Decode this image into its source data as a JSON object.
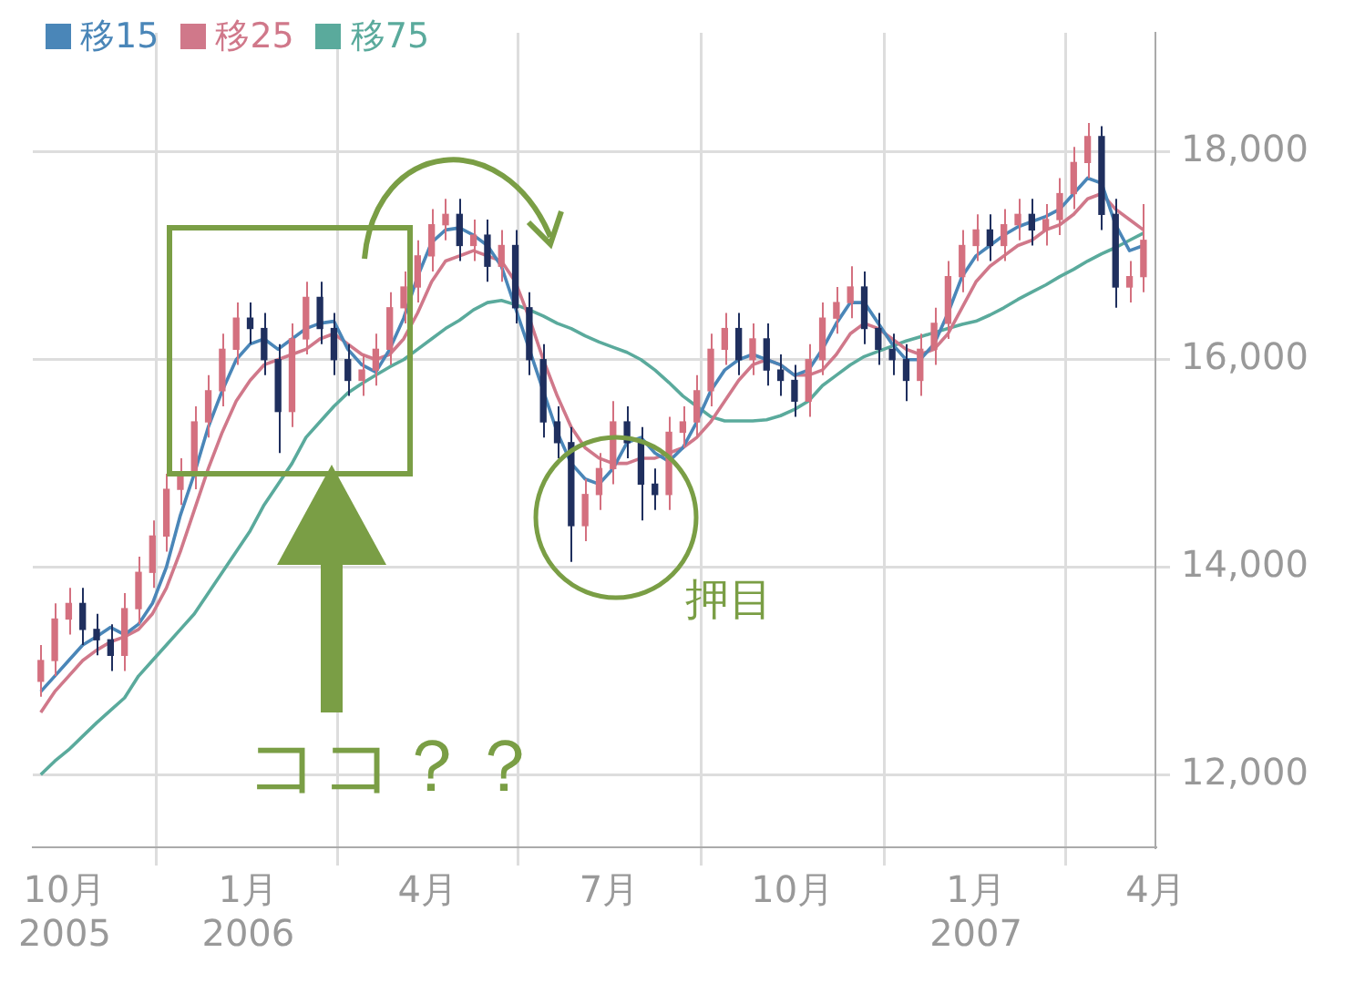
{
  "chart_data": {
    "type": "candlestick",
    "x": [
      "2005-09-19",
      "2005-09-26",
      "2005-10-03",
      "2005-10-10",
      "2005-10-17",
      "2005-10-24",
      "2005-10-31",
      "2005-11-07",
      "2005-11-14",
      "2005-11-21",
      "2005-11-28",
      "2005-12-05",
      "2005-12-12",
      "2005-12-19",
      "2005-12-26",
      "2006-01-02",
      "2006-01-09",
      "2006-01-16",
      "2006-01-23",
      "2006-01-30",
      "2006-02-06",
      "2006-02-13",
      "2006-02-20",
      "2006-02-27",
      "2006-03-06",
      "2006-03-13",
      "2006-03-20",
      "2006-03-27",
      "2006-04-03",
      "2006-04-10",
      "2006-04-17",
      "2006-04-24",
      "2006-05-01",
      "2006-05-08",
      "2006-05-15",
      "2006-05-22",
      "2006-05-29",
      "2006-06-05",
      "2006-06-12",
      "2006-06-19",
      "2006-06-26",
      "2006-07-03",
      "2006-07-10",
      "2006-07-17",
      "2006-07-24",
      "2006-07-31",
      "2006-08-07",
      "2006-08-14",
      "2006-08-21",
      "2006-08-28",
      "2006-09-04",
      "2006-09-11",
      "2006-09-18",
      "2006-09-25",
      "2006-10-02",
      "2006-10-09",
      "2006-10-16",
      "2006-10-23",
      "2006-10-30",
      "2006-11-06",
      "2006-11-13",
      "2006-11-20",
      "2006-11-27",
      "2006-12-04",
      "2006-12-11",
      "2006-12-18",
      "2006-12-25",
      "2007-01-01",
      "2007-01-08",
      "2007-01-15",
      "2007-01-22",
      "2007-01-29",
      "2007-02-05",
      "2007-02-12",
      "2007-02-19",
      "2007-02-26",
      "2007-03-05",
      "2007-03-12",
      "2007-03-19",
      "2007-03-26"
    ],
    "ohlc": [
      [
        12900,
        13250,
        12750,
        13100
      ],
      [
        13100,
        13650,
        12950,
        13500
      ],
      [
        13500,
        13800,
        13350,
        13650
      ],
      [
        13650,
        13800,
        13250,
        13400
      ],
      [
        13400,
        13550,
        13150,
        13300
      ],
      [
        13300,
        13450,
        13000,
        13150
      ],
      [
        13150,
        13750,
        13000,
        13600
      ],
      [
        13600,
        14100,
        13450,
        13950
      ],
      [
        13950,
        14450,
        13800,
        14300
      ],
      [
        14300,
        14900,
        14150,
        14750
      ],
      [
        14750,
        15050,
        14600,
        14900
      ],
      [
        14900,
        15550,
        14750,
        15400
      ],
      [
        15400,
        15850,
        15250,
        15700
      ],
      [
        15700,
        16250,
        15550,
        16100
      ],
      [
        16100,
        16550,
        15950,
        16400
      ],
      [
        16400,
        16550,
        16150,
        16300
      ],
      [
        16300,
        16450,
        15850,
        16000
      ],
      [
        16000,
        16150,
        15100,
        15500
      ],
      [
        15500,
        16350,
        15350,
        16200
      ],
      [
        16200,
        16750,
        16050,
        16600
      ],
      [
        16600,
        16750,
        16150,
        16300
      ],
      [
        16300,
        16450,
        15850,
        16000
      ],
      [
        16000,
        16150,
        15650,
        15800
      ],
      [
        15800,
        16050,
        15650,
        15900
      ],
      [
        15900,
        16250,
        15750,
        16100
      ],
      [
        16100,
        16650,
        15950,
        16500
      ],
      [
        16500,
        16850,
        16350,
        16700
      ],
      [
        16700,
        17150,
        16550,
        17000
      ],
      [
        17000,
        17450,
        16850,
        17300
      ],
      [
        17300,
        17550,
        17150,
        17400
      ],
      [
        17400,
        17550,
        16950,
        17100
      ],
      [
        17100,
        17350,
        16950,
        17200
      ],
      [
        17200,
        17350,
        16750,
        16900
      ],
      [
        16900,
        17250,
        16750,
        17100
      ],
      [
        17100,
        17250,
        16350,
        16500
      ],
      [
        16500,
        16650,
        15850,
        16000
      ],
      [
        16000,
        16150,
        15250,
        15400
      ],
      [
        15400,
        15550,
        15050,
        15200
      ],
      [
        15200,
        15350,
        14050,
        14400
      ],
      [
        14400,
        14850,
        14250,
        14700
      ],
      [
        14700,
        15100,
        14550,
        14950
      ],
      [
        14950,
        15600,
        14800,
        15400
      ],
      [
        15400,
        15550,
        15050,
        15200
      ],
      [
        15200,
        15350,
        14450,
        14800
      ],
      [
        14800,
        14950,
        14550,
        14700
      ],
      [
        14700,
        15450,
        14550,
        15300
      ],
      [
        15300,
        15550,
        15150,
        15400
      ],
      [
        15400,
        15850,
        15250,
        15700
      ],
      [
        15700,
        16250,
        15550,
        16100
      ],
      [
        16100,
        16450,
        15950,
        16300
      ],
      [
        16300,
        16450,
        15850,
        16000
      ],
      [
        16000,
        16350,
        15850,
        16200
      ],
      [
        16200,
        16350,
        15750,
        15900
      ],
      [
        15900,
        16050,
        15650,
        15800
      ],
      [
        15800,
        15950,
        15450,
        15600
      ],
      [
        15600,
        16150,
        15450,
        16000
      ],
      [
        16000,
        16550,
        15850,
        16400
      ],
      [
        16400,
        16700,
        16250,
        16550
      ],
      [
        16550,
        16900,
        16400,
        16700
      ],
      [
        16700,
        16850,
        16150,
        16300
      ],
      [
        16300,
        16450,
        15950,
        16100
      ],
      [
        16100,
        16250,
        15850,
        16000
      ],
      [
        16000,
        16150,
        15600,
        15800
      ],
      [
        15800,
        16250,
        15650,
        16100
      ],
      [
        16100,
        16500,
        15950,
        16350
      ],
      [
        16350,
        16950,
        16200,
        16800
      ],
      [
        16800,
        17250,
        16650,
        17100
      ],
      [
        17100,
        17400,
        16950,
        17250
      ],
      [
        17250,
        17400,
        16950,
        17100
      ],
      [
        17100,
        17450,
        16950,
        17300
      ],
      [
        17300,
        17550,
        17150,
        17400
      ],
      [
        17400,
        17550,
        17100,
        17250
      ],
      [
        17250,
        17500,
        17100,
        17350
      ],
      [
        17350,
        17750,
        17200,
        17600
      ],
      [
        17600,
        18050,
        17450,
        17900
      ],
      [
        17900,
        18280,
        17750,
        18150
      ],
      [
        18150,
        18250,
        17250,
        17400
      ],
      [
        17400,
        17550,
        16500,
        16700
      ],
      [
        16700,
        16950,
        16550,
        16800
      ],
      [
        16800,
        17500,
        16650,
        17150
      ]
    ],
    "colors": [
      "#d4707f",
      "#d4707f",
      "#d4707f",
      "#1f2f5e",
      "#1f2f5e",
      "#1f2f5e",
      "#d4707f",
      "#d4707f",
      "#d4707f",
      "#d4707f",
      "#d4707f",
      "#d4707f",
      "#d4707f",
      "#d4707f",
      "#d4707f",
      "#1f2f5e",
      "#1f2f5e",
      "#1f2f5e",
      "#d4707f",
      "#d4707f",
      "#1f2f5e",
      "#1f2f5e",
      "#1f2f5e",
      "#d4707f",
      "#d4707f",
      "#d4707f",
      "#d4707f",
      "#d4707f",
      "#d4707f",
      "#d4707f",
      "#1f2f5e",
      "#d4707f",
      "#1f2f5e",
      "#d4707f",
      "#1f2f5e",
      "#1f2f5e",
      "#1f2f5e",
      "#1f2f5e",
      "#1f2f5e",
      "#d4707f",
      "#d4707f",
      "#d4707f",
      "#1f2f5e",
      "#1f2f5e",
      "#1f2f5e",
      "#d4707f",
      "#d4707f",
      "#d4707f",
      "#d4707f",
      "#d4707f",
      "#1f2f5e",
      "#d4707f",
      "#1f2f5e",
      "#1f2f5e",
      "#1f2f5e",
      "#d4707f",
      "#d4707f",
      "#d4707f",
      "#d4707f",
      "#1f2f5e",
      "#1f2f5e",
      "#1f2f5e",
      "#1f2f5e",
      "#d4707f",
      "#d4707f",
      "#d4707f",
      "#d4707f",
      "#d4707f",
      "#1f2f5e",
      "#d4707f",
      "#d4707f",
      "#1f2f5e",
      "#d4707f",
      "#d4707f",
      "#d4707f",
      "#d4707f",
      "#1f2f5e",
      "#1f2f5e",
      "#d4707f",
      "#d4707f"
    ],
    "series": [
      {
        "name": "移15",
        "type": "line",
        "color": "#4a86b8",
        "values": [
          12800,
          12950,
          13100,
          13250,
          13330,
          13420,
          13350,
          13450,
          13650,
          14000,
          14500,
          14900,
          15350,
          15700,
          16000,
          16150,
          16200,
          16100,
          16200,
          16300,
          16350,
          16370,
          16100,
          15950,
          15880,
          16100,
          16400,
          16800,
          17130,
          17250,
          17270,
          17200,
          17100,
          16900,
          16500,
          16100,
          15700,
          15300,
          15000,
          14850,
          14800,
          14950,
          15200,
          15250,
          15100,
          15020,
          15150,
          15400,
          15700,
          15900,
          16000,
          16050,
          16000,
          15950,
          15850,
          15900,
          16100,
          16350,
          16550,
          16550,
          16350,
          16150,
          16000,
          16000,
          16150,
          16450,
          16800,
          17000,
          17100,
          17200,
          17280,
          17330,
          17380,
          17450,
          17600,
          17750,
          17700,
          17300,
          17050,
          17100
        ]
      },
      {
        "name": "移25",
        "type": "line",
        "color": "#d0788a",
        "values": [
          12600,
          12800,
          12950,
          13100,
          13200,
          13280,
          13330,
          13400,
          13550,
          13800,
          14150,
          14550,
          14950,
          15300,
          15600,
          15800,
          15950,
          16000,
          16050,
          16100,
          16200,
          16250,
          16150,
          16050,
          16000,
          16050,
          16200,
          16450,
          16750,
          16950,
          17000,
          17050,
          17000,
          16950,
          16750,
          16400,
          16000,
          15650,
          15350,
          15150,
          15050,
          15000,
          15000,
          15050,
          15050,
          15100,
          15150,
          15250,
          15400,
          15600,
          15800,
          15950,
          16000,
          15950,
          15850,
          15850,
          15900,
          16050,
          16250,
          16350,
          16300,
          16200,
          16100,
          16050,
          16100,
          16250,
          16500,
          16750,
          16900,
          17000,
          17100,
          17150,
          17250,
          17300,
          17400,
          17550,
          17600,
          17450,
          17350,
          17250
        ]
      },
      {
        "name": "移75",
        "type": "line",
        "color": "#5aaa9c",
        "values": [
          12000,
          12130,
          12240,
          12370,
          12500,
          12620,
          12740,
          12950,
          13100,
          13250,
          13400,
          13550,
          13750,
          13950,
          14150,
          14350,
          14600,
          14800,
          15000,
          15250,
          15400,
          15550,
          15680,
          15770,
          15850,
          15930,
          16000,
          16100,
          16200,
          16300,
          16380,
          16480,
          16550,
          16570,
          16530,
          16480,
          16420,
          16350,
          16300,
          16230,
          16170,
          16120,
          16070,
          16000,
          15900,
          15780,
          15650,
          15550,
          15450,
          15410,
          15410,
          15410,
          15420,
          15460,
          15520,
          15600,
          15750,
          15850,
          15950,
          16030,
          16080,
          16130,
          16180,
          16220,
          16260,
          16300,
          16340,
          16370,
          16430,
          16500,
          16580,
          16650,
          16720,
          16800,
          16870,
          16950,
          17020,
          17080,
          17150,
          17220
        ]
      }
    ],
    "xlim": [
      "2005-09-15",
      "2007-04-01"
    ],
    "xticks": [
      {
        "value": "2005-10",
        "label": "10月\n2005"
      },
      {
        "value": "2006-01",
        "label": "1月\n2006"
      },
      {
        "value": "2006-04",
        "label": "4月"
      },
      {
        "value": "2006-07",
        "label": "7月"
      },
      {
        "value": "2006-10",
        "label": "10月"
      },
      {
        "value": "2007-01",
        "label": "1月\n2007"
      },
      {
        "value": "2007-04",
        "label": "4月"
      }
    ],
    "ylim": [
      11300,
      19150
    ],
    "yticks": [
      {
        "value": 12000,
        "label": "12,000"
      },
      {
        "value": 14000,
        "label": "14,000"
      },
      {
        "value": 16000,
        "label": "16,000"
      },
      {
        "value": 18000,
        "label": "18,000"
      }
    ],
    "grid": true,
    "legend": "top left",
    "annotations": [
      "ココ？？",
      "押目"
    ]
  }
}
